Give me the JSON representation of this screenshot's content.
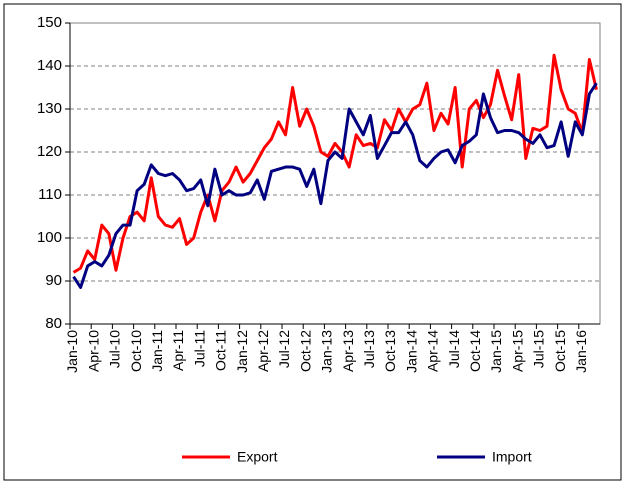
{
  "chart_data": {
    "type": "line",
    "categories": [
      "Jan-10",
      null,
      null,
      "Apr-10",
      null,
      null,
      "Jul-10",
      null,
      null,
      "Oct-10",
      null,
      null,
      "Jan-11",
      null,
      null,
      "Apr-11",
      null,
      null,
      "Jul-11",
      null,
      null,
      "Oct-11",
      null,
      null,
      "Jan-12",
      null,
      null,
      "Apr-12",
      null,
      null,
      "Jul-12",
      null,
      null,
      "Oct-12",
      null,
      null,
      "Jan-13",
      null,
      null,
      "Apr-13",
      null,
      null,
      "Jul-13",
      null,
      null,
      "Oct-13",
      null,
      null,
      "Jan-14",
      null,
      null,
      "Apr-14",
      null,
      null,
      "Jul-14",
      null,
      null,
      "Oct-14",
      null,
      null,
      "Jan-15",
      null,
      null,
      "Apr-15",
      null,
      null,
      "Jul-15",
      null,
      null,
      "Oct-15",
      null,
      null,
      "Jan-16",
      null,
      null
    ],
    "series": [
      {
        "name": "Export",
        "color": "#ff0000",
        "values": [
          92,
          93,
          97,
          95,
          103,
          101,
          92.5,
          100,
          105,
          106,
          104,
          114,
          105,
          103,
          102.5,
          104.5,
          98.5,
          100,
          106,
          110,
          104,
          111,
          113,
          116.5,
          113,
          115,
          118,
          121,
          123,
          127,
          124,
          135,
          126,
          130,
          126,
          120,
          119,
          122,
          120,
          116.5,
          124,
          121.5,
          122,
          121,
          127.5,
          125,
          130,
          127,
          130,
          131,
          136,
          125,
          129,
          126.5,
          135,
          116.5,
          130,
          132,
          128,
          131,
          139,
          133,
          127.5,
          138,
          118.5,
          125.5,
          125,
          126,
          142.5,
          134.5,
          130,
          129,
          124.5,
          141.5,
          134.5
        ]
      },
      {
        "name": "Import",
        "color": "#000080",
        "values": [
          91,
          88.5,
          93.5,
          94.5,
          93.5,
          96,
          101,
          103,
          103,
          111,
          112.5,
          117,
          115,
          114.5,
          115,
          113.5,
          111,
          111.5,
          113.5,
          107.5,
          116,
          110,
          111,
          110,
          110,
          110.5,
          113.5,
          109,
          115.5,
          116,
          116.5,
          116.5,
          116,
          112,
          116,
          108,
          118,
          120,
          118.5,
          130,
          127,
          124,
          128.5,
          118.5,
          121.5,
          124.5,
          124.5,
          127,
          124,
          118,
          116.5,
          118.5,
          120,
          120.5,
          117.5,
          121.5,
          122.5,
          124,
          133.5,
          128,
          124.5,
          125,
          125,
          124.5,
          123,
          122,
          124,
          121,
          121.5,
          127,
          119,
          127,
          124,
          133.5,
          136
        ]
      }
    ],
    "ylim": [
      80,
      150
    ],
    "yticks": [
      80,
      90,
      100,
      110,
      120,
      130,
      140,
      150
    ],
    "grid": true
  }
}
